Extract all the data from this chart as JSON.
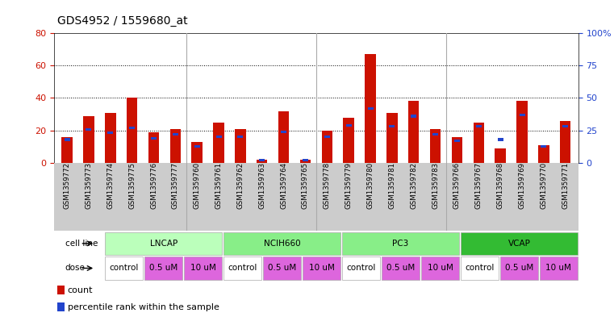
{
  "title": "GDS4952 / 1559680_at",
  "samples": [
    "GSM1359772",
    "GSM1359773",
    "GSM1359774",
    "GSM1359775",
    "GSM1359776",
    "GSM1359777",
    "GSM1359760",
    "GSM1359761",
    "GSM1359762",
    "GSM1359763",
    "GSM1359764",
    "GSM1359765",
    "GSM1359778",
    "GSM1359779",
    "GSM1359780",
    "GSM1359781",
    "GSM1359782",
    "GSM1359783",
    "GSM1359766",
    "GSM1359767",
    "GSM1359768",
    "GSM1359769",
    "GSM1359770",
    "GSM1359771"
  ],
  "red_values": [
    16,
    29,
    31,
    40,
    19,
    21,
    13,
    25,
    21,
    2,
    32,
    2,
    20,
    28,
    67,
    31,
    38,
    21,
    16,
    25,
    9,
    38,
    11,
    26
  ],
  "blue_values": [
    18,
    26,
    23,
    27,
    19,
    22,
    13,
    20,
    20,
    2,
    24,
    2,
    20,
    29,
    42,
    28,
    36,
    22,
    17,
    28,
    18,
    37,
    13,
    28
  ],
  "cell_line_groups": [
    {
      "label": "LNCAP",
      "start": 0,
      "end": 6,
      "color": "#bbffbb"
    },
    {
      "label": "NCIH660",
      "start": 6,
      "end": 12,
      "color": "#88ee88"
    },
    {
      "label": "PC3",
      "start": 12,
      "end": 18,
      "color": "#88ee88"
    },
    {
      "label": "VCAP",
      "start": 18,
      "end": 24,
      "color": "#33bb33"
    }
  ],
  "dose_groups": [
    {
      "label": "control",
      "start": 0,
      "end": 2,
      "color": "#ffffff"
    },
    {
      "label": "0.5 uM",
      "start": 2,
      "end": 4,
      "color": "#dd66dd"
    },
    {
      "label": "10 uM",
      "start": 4,
      "end": 6,
      "color": "#dd66dd"
    },
    {
      "label": "control",
      "start": 6,
      "end": 8,
      "color": "#ffffff"
    },
    {
      "label": "0.5 uM",
      "start": 8,
      "end": 10,
      "color": "#dd66dd"
    },
    {
      "label": "10 uM",
      "start": 10,
      "end": 12,
      "color": "#dd66dd"
    },
    {
      "label": "control",
      "start": 12,
      "end": 14,
      "color": "#ffffff"
    },
    {
      "label": "0.5 uM",
      "start": 14,
      "end": 16,
      "color": "#dd66dd"
    },
    {
      "label": "10 uM",
      "start": 16,
      "end": 18,
      "color": "#dd66dd"
    },
    {
      "label": "control",
      "start": 18,
      "end": 20,
      "color": "#ffffff"
    },
    {
      "label": "0.5 uM",
      "start": 20,
      "end": 22,
      "color": "#dd66dd"
    },
    {
      "label": "10 uM",
      "start": 22,
      "end": 24,
      "color": "#dd66dd"
    }
  ],
  "left_ylim": [
    0,
    80
  ],
  "left_yticks": [
    0,
    20,
    40,
    60,
    80
  ],
  "right_yticks": [
    0,
    25,
    50,
    75,
    100
  ],
  "right_yticklabels": [
    "0",
    "25",
    "50",
    "75",
    "100%"
  ],
  "red_color": "#cc1100",
  "blue_color": "#2244cc",
  "grid_dotted_at": [
    20,
    40,
    60
  ],
  "xtick_bg": "#cccccc",
  "row_bg": "#cccccc"
}
